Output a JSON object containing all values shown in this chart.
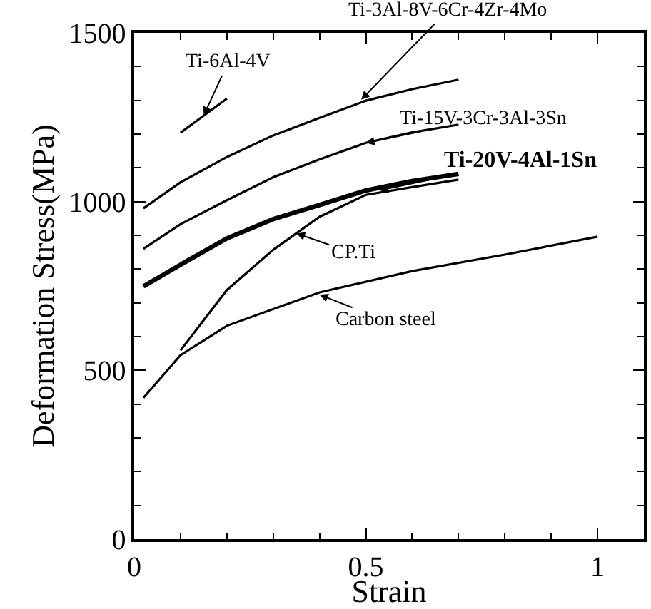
{
  "chart_data": {
    "type": "line",
    "xlabel": "Strain",
    "ylabel": "Deformation Stress(MPa)",
    "xlim": [
      0,
      1.1
    ],
    "ylim": [
      0,
      1500
    ],
    "xticks": [
      0,
      0.5,
      1
    ],
    "yticks": [
      0,
      500,
      1000,
      1500
    ],
    "marker": "none",
    "line_style": "solid",
    "series": [
      {
        "color": "#000000",
        "x": [
          0.1,
          0.2
        ],
        "values": [
          1204,
          1305
        ]
      },
      {
        "color": "#000000",
        "x": [
          0.02,
          0.1,
          0.2,
          0.3,
          0.4,
          0.5,
          0.6,
          0.7
        ],
        "values": [
          980,
          1057,
          1132,
          1196,
          1248,
          1299,
          1333,
          1361
        ]
      },
      {
        "color": "#000000",
        "x": [
          0.02,
          0.1,
          0.2,
          0.3,
          0.4,
          0.5,
          0.6,
          0.7
        ],
        "values": [
          860,
          933,
          1004,
          1072,
          1125,
          1174,
          1205,
          1228
        ]
      },
      {
        "color": "#000000",
        "x": [
          0.02,
          0.1,
          0.2,
          0.3,
          0.4,
          0.5,
          0.6,
          0.7
        ],
        "values": [
          749,
          813,
          891,
          948,
          990,
          1033,
          1061,
          1082
        ]
      },
      {
        "color": "#000000",
        "x": [
          0.1,
          0.2,
          0.3,
          0.4,
          0.5,
          0.6,
          0.7
        ],
        "values": [
          559,
          738,
          857,
          955,
          1020,
          1043,
          1065
        ]
      },
      {
        "color": "#000000",
        "x": [
          0.02,
          0.1,
          0.2,
          0.4,
          0.6,
          0.8,
          1.0
        ],
        "values": [
          419,
          545,
          632,
          731,
          794,
          843,
          896
        ]
      }
    ],
    "annotations": [
      {
        "text": "Ti-6Al-4V",
        "x": 0.15,
        "y": 1255
      },
      {
        "text": "Ti-3Al-8V-6Cr-4Zr-4Mo",
        "x": 0.49,
        "y": 1302
      },
      {
        "text": "Ti-15V-3Cr-3Al-3Sn",
        "x": 0.5,
        "y": 1174
      },
      {
        "text": "Ti-20V-4Al-1Sn",
        "x": 0.53,
        "y": 1033
      },
      {
        "text": "CP.Ti",
        "x": 0.35,
        "y": 906
      },
      {
        "text": "Carbon steel",
        "x": 0.4,
        "y": 724
      }
    ]
  }
}
